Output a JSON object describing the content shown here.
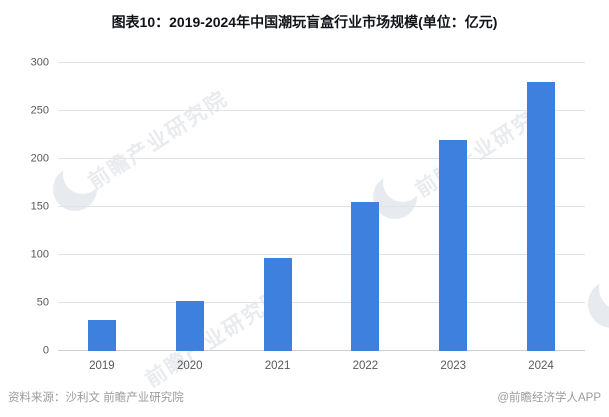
{
  "title": "图表10：2019-2024年中国潮玩盲盒行业市场规模(单位：亿元)",
  "chart_data": {
    "type": "bar",
    "categories": [
      "2019",
      "2020",
      "2021",
      "2022",
      "2023",
      "2024"
    ],
    "values": [
      32,
      52,
      97,
      155,
      220,
      280
    ],
    "title": "图表10：2019-2024年中国潮玩盲盒行业市场规模(单位：亿元)",
    "xlabel": "",
    "ylabel": "",
    "unit": "亿元",
    "ylim": [
      0,
      300
    ],
    "yticks": [
      0,
      50,
      100,
      150,
      200,
      250,
      300
    ],
    "grid": true,
    "legend": "none",
    "bar_color": "#3d80dd"
  },
  "footer": {
    "source": "资料来源：沙利文 前瞻产业研究院",
    "credit": "@前瞻经济学人APP"
  },
  "watermark": {
    "text": "前瞻产业研究院"
  },
  "colors": {
    "bar": "#3d80dd",
    "gridline": "#e3e3e6",
    "axis_text": "#595959",
    "footer_text": "#9b9b9b",
    "title_text": "#111318",
    "watermark": "#e9ebef"
  }
}
